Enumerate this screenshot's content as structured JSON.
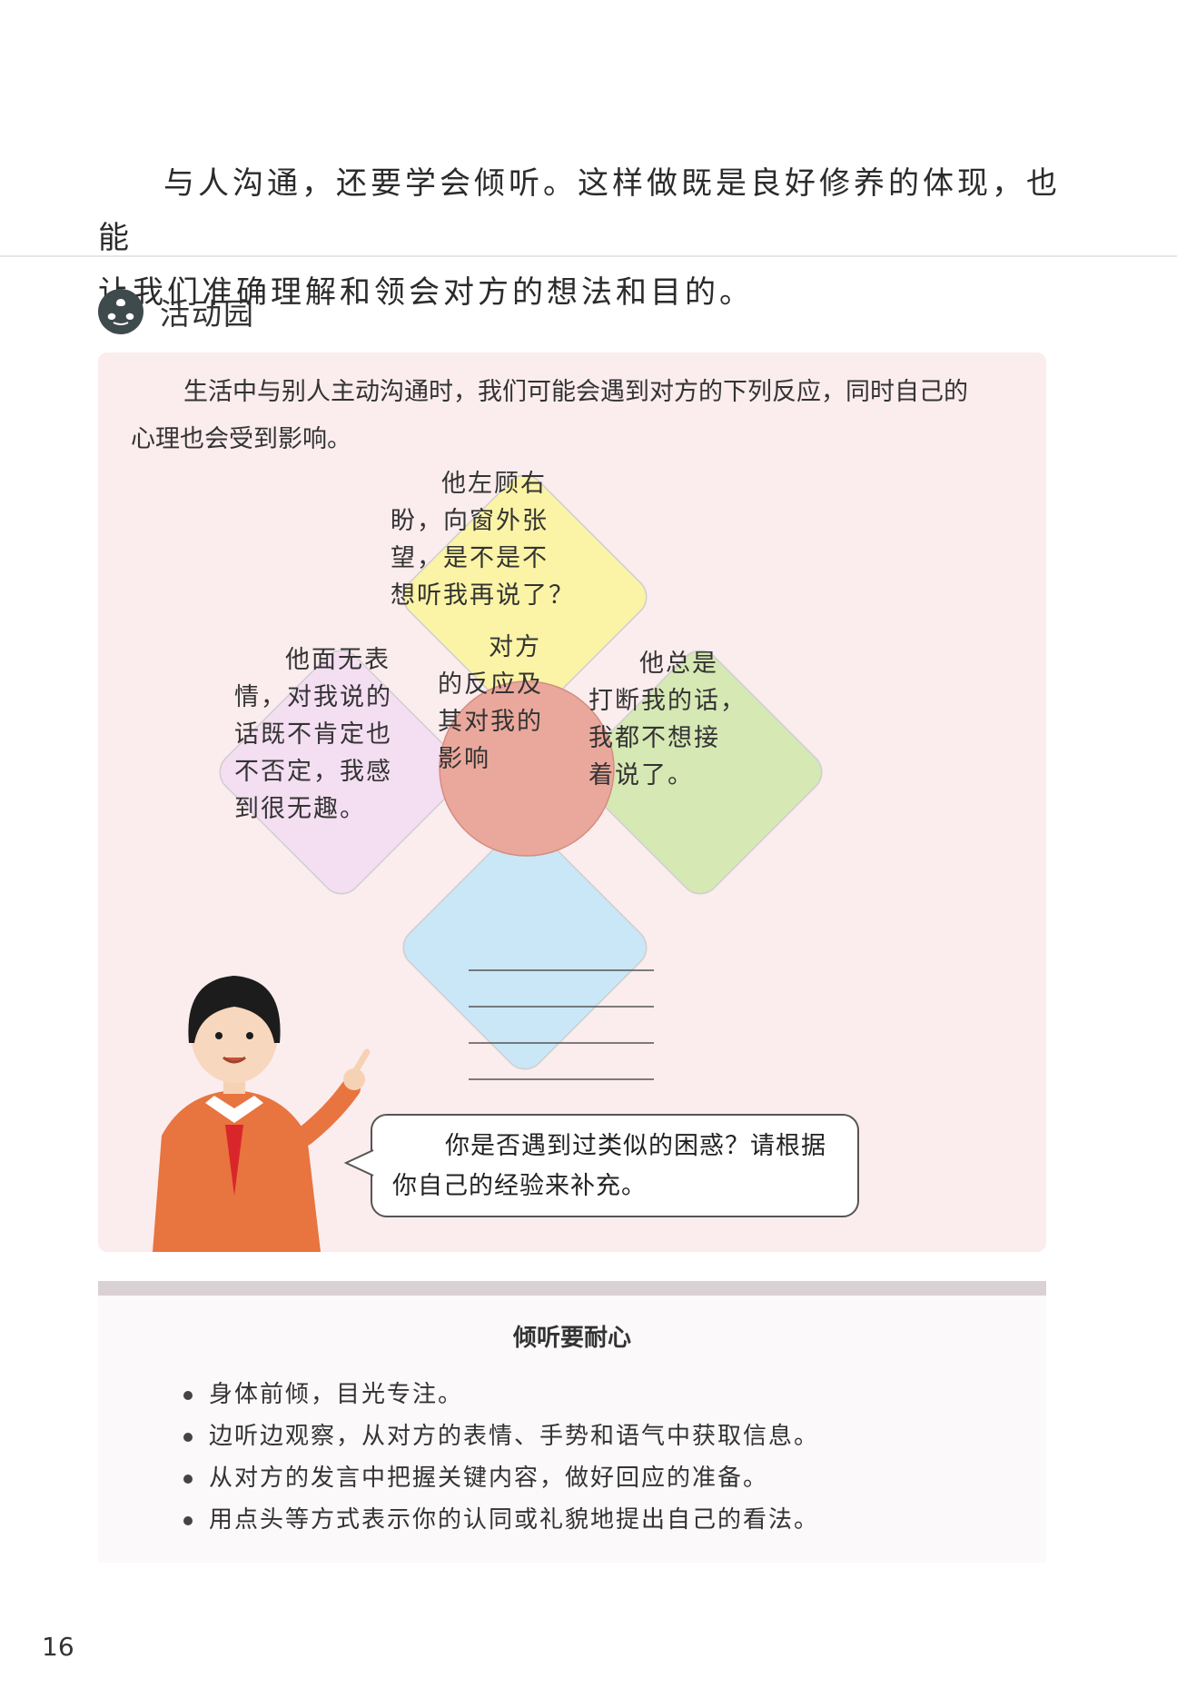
{
  "intro": {
    "line1": "与人沟通，还要学会倾听。这样做既是良好修养的体现，也能",
    "line2": "让我们准确理解和领会对方的想法和目的。"
  },
  "section": {
    "title": "活动园"
  },
  "activity": {
    "line1": "生活中与别人主动沟通时，我们可能会遇到对方的下列反应，同时自己的",
    "line2": "心理也会受到影响。",
    "center": [
      "对方",
      "的反应及",
      "其对我的",
      "影响"
    ],
    "top": [
      "他左顾右",
      "盼，向窗外张",
      "望，是不是不",
      "想听我再说了？"
    ],
    "left": [
      "他面无表",
      "情，对我说的",
      "话既不肯定也",
      "不否定，我感",
      "到很无趣。"
    ],
    "right": [
      "他总是",
      "打断我的话，",
      "我都不想接",
      "着说了。"
    ],
    "colors": {
      "top": "#fbf3a5",
      "left": "#f4def2",
      "right": "#d6e8b4",
      "bottom": "#c9e7f6",
      "center": "#eaa89c"
    }
  },
  "bubble": {
    "line1": "你是否遇到过类似的困惑？请根据",
    "line2": "你自己的经验来补充。"
  },
  "tips": {
    "title": "倾听要耐心",
    "items": [
      "身体前倾，目光专注。",
      "边听边观察，从对方的表情、手势和语气中获取信息。",
      "从对方的发言中把握关键内容，做好回应的准备。",
      "用点头等方式表示你的认同或礼貌地提出自己的看法。"
    ]
  },
  "page_number": "16"
}
